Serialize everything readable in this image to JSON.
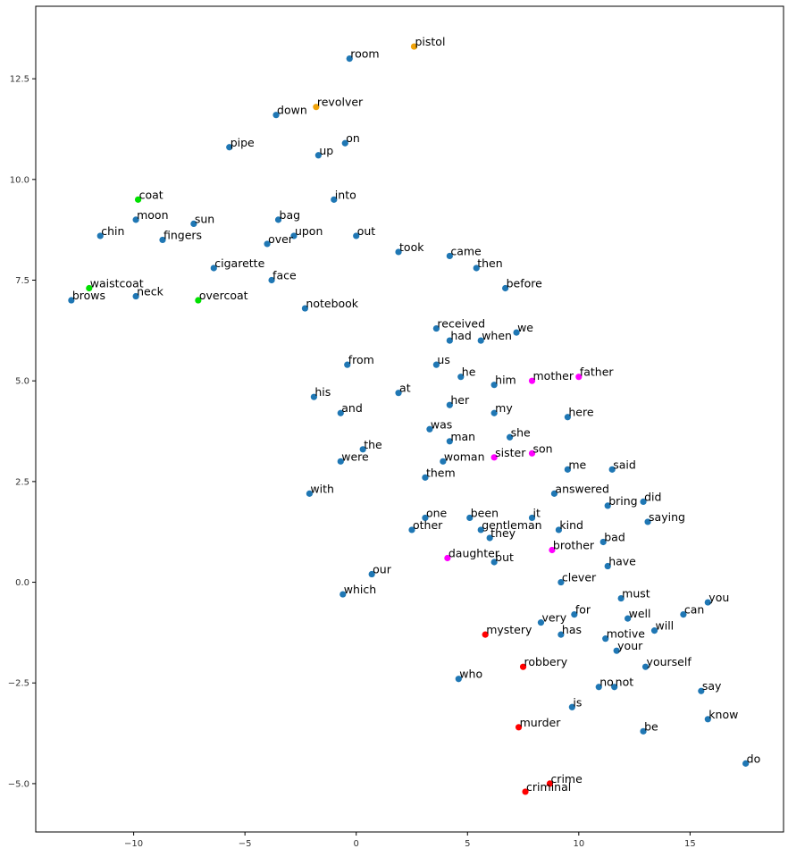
{
  "chart_data": {
    "type": "scatter",
    "title": "",
    "xlabel": "",
    "ylabel": "",
    "xlim": [
      -14.4,
      19.2
    ],
    "ylim": [
      -6.2,
      14.3
    ],
    "x_ticks": [
      -10,
      -5,
      0,
      5,
      10,
      15
    ],
    "y_ticks": [
      -5.0,
      -2.5,
      0.0,
      2.5,
      5.0,
      7.5,
      10.0,
      12.5
    ],
    "x_tick_labels": [
      "−10",
      "−5",
      "0",
      "5",
      "10",
      "15"
    ],
    "y_tick_labels": [
      "−5.0",
      "−2.5",
      "0.0",
      "2.5",
      "5.0",
      "7.5",
      "10.0",
      "12.5"
    ],
    "grid": false,
    "colors": {
      "default": "#1f77b4",
      "weapon": "#f0a30a",
      "clothing": "#00e000",
      "family": "#ff00ff",
      "crime": "#ff0000"
    },
    "points": [
      {
        "word": "pistol",
        "x": 2.6,
        "y": 13.3,
        "group": "weapon"
      },
      {
        "word": "room",
        "x": -0.3,
        "y": 13.0,
        "group": "default"
      },
      {
        "word": "revolver",
        "x": -1.8,
        "y": 11.8,
        "group": "weapon"
      },
      {
        "word": "down",
        "x": -3.6,
        "y": 11.6,
        "group": "default"
      },
      {
        "word": "on",
        "x": -0.5,
        "y": 10.9,
        "group": "default"
      },
      {
        "word": "pipe",
        "x": -5.7,
        "y": 10.8,
        "group": "default"
      },
      {
        "word": "up",
        "x": -1.7,
        "y": 10.6,
        "group": "default"
      },
      {
        "word": "into",
        "x": -1.0,
        "y": 9.5,
        "group": "default"
      },
      {
        "word": "coat",
        "x": -9.8,
        "y": 9.5,
        "group": "clothing"
      },
      {
        "word": "moon",
        "x": -9.9,
        "y": 9.0,
        "group": "default"
      },
      {
        "word": "bag",
        "x": -3.5,
        "y": 9.0,
        "group": "default"
      },
      {
        "word": "sun",
        "x": -7.3,
        "y": 8.9,
        "group": "default"
      },
      {
        "word": "upon",
        "x": -2.8,
        "y": 8.6,
        "group": "default"
      },
      {
        "word": "out",
        "x": 0.0,
        "y": 8.6,
        "group": "default"
      },
      {
        "word": "chin",
        "x": -11.5,
        "y": 8.6,
        "group": "default"
      },
      {
        "word": "fingers",
        "x": -8.7,
        "y": 8.5,
        "group": "default"
      },
      {
        "word": "over",
        "x": -4.0,
        "y": 8.4,
        "group": "default"
      },
      {
        "word": "took",
        "x": 1.9,
        "y": 8.2,
        "group": "default"
      },
      {
        "word": "came",
        "x": 4.2,
        "y": 8.1,
        "group": "default"
      },
      {
        "word": "cigarette",
        "x": -6.4,
        "y": 7.8,
        "group": "default"
      },
      {
        "word": "then",
        "x": 5.4,
        "y": 7.8,
        "group": "default"
      },
      {
        "word": "face",
        "x": -3.8,
        "y": 7.5,
        "group": "default"
      },
      {
        "word": "waistcoat",
        "x": -12.0,
        "y": 7.3,
        "group": "clothing"
      },
      {
        "word": "before",
        "x": 6.7,
        "y": 7.3,
        "group": "default"
      },
      {
        "word": "neck",
        "x": -9.9,
        "y": 7.1,
        "group": "default"
      },
      {
        "word": "overcoat",
        "x": -7.1,
        "y": 7.0,
        "group": "clothing"
      },
      {
        "word": "brows",
        "x": -12.8,
        "y": 7.0,
        "group": "default"
      },
      {
        "word": "notebook",
        "x": -2.3,
        "y": 6.8,
        "group": "default"
      },
      {
        "word": "received",
        "x": 3.6,
        "y": 6.3,
        "group": "default"
      },
      {
        "word": "we",
        "x": 7.2,
        "y": 6.2,
        "group": "default"
      },
      {
        "word": "had",
        "x": 4.2,
        "y": 6.0,
        "group": "default"
      },
      {
        "word": "when",
        "x": 5.6,
        "y": 6.0,
        "group": "default"
      },
      {
        "word": "from",
        "x": -0.4,
        "y": 5.4,
        "group": "default"
      },
      {
        "word": "us",
        "x": 3.6,
        "y": 5.4,
        "group": "default"
      },
      {
        "word": "he",
        "x": 4.7,
        "y": 5.1,
        "group": "default"
      },
      {
        "word": "mother",
        "x": 7.9,
        "y": 5.0,
        "group": "family"
      },
      {
        "word": "father",
        "x": 10.0,
        "y": 5.1,
        "group": "family"
      },
      {
        "word": "him",
        "x": 6.2,
        "y": 4.9,
        "group": "default"
      },
      {
        "word": "at",
        "x": 1.9,
        "y": 4.7,
        "group": "default"
      },
      {
        "word": "his",
        "x": -1.9,
        "y": 4.6,
        "group": "default"
      },
      {
        "word": "her",
        "x": 4.2,
        "y": 4.4,
        "group": "default"
      },
      {
        "word": "and",
        "x": -0.7,
        "y": 4.2,
        "group": "default"
      },
      {
        "word": "my",
        "x": 6.2,
        "y": 4.2,
        "group": "default"
      },
      {
        "word": "here",
        "x": 9.5,
        "y": 4.1,
        "group": "default"
      },
      {
        "word": "was",
        "x": 3.3,
        "y": 3.8,
        "group": "default"
      },
      {
        "word": "she",
        "x": 6.9,
        "y": 3.6,
        "group": "default"
      },
      {
        "word": "man",
        "x": 4.2,
        "y": 3.5,
        "group": "default"
      },
      {
        "word": "the",
        "x": 0.3,
        "y": 3.3,
        "group": "default"
      },
      {
        "word": "son",
        "x": 7.9,
        "y": 3.2,
        "group": "family"
      },
      {
        "word": "sister",
        "x": 6.2,
        "y": 3.1,
        "group": "family"
      },
      {
        "word": "were",
        "x": -0.7,
        "y": 3.0,
        "group": "default"
      },
      {
        "word": "woman",
        "x": 3.9,
        "y": 3.0,
        "group": "default"
      },
      {
        "word": "me",
        "x": 9.5,
        "y": 2.8,
        "group": "default"
      },
      {
        "word": "said",
        "x": 11.5,
        "y": 2.8,
        "group": "default"
      },
      {
        "word": "them",
        "x": 3.1,
        "y": 2.6,
        "group": "default"
      },
      {
        "word": "with",
        "x": -2.1,
        "y": 2.2,
        "group": "default"
      },
      {
        "word": "answered",
        "x": 8.9,
        "y": 2.2,
        "group": "default"
      },
      {
        "word": "did",
        "x": 12.9,
        "y": 2.0,
        "group": "default"
      },
      {
        "word": "bring",
        "x": 11.3,
        "y": 1.9,
        "group": "default"
      },
      {
        "word": "one",
        "x": 3.1,
        "y": 1.6,
        "group": "default"
      },
      {
        "word": "been",
        "x": 5.1,
        "y": 1.6,
        "group": "default"
      },
      {
        "word": "it",
        "x": 7.9,
        "y": 1.6,
        "group": "default"
      },
      {
        "word": "saying",
        "x": 13.1,
        "y": 1.5,
        "group": "default"
      },
      {
        "word": "gentleman",
        "x": 5.6,
        "y": 1.3,
        "group": "default"
      },
      {
        "word": "kind",
        "x": 9.1,
        "y": 1.3,
        "group": "default"
      },
      {
        "word": "other",
        "x": 2.5,
        "y": 1.3,
        "group": "default"
      },
      {
        "word": "they",
        "x": 6.0,
        "y": 1.1,
        "group": "default"
      },
      {
        "word": "bad",
        "x": 11.1,
        "y": 1.0,
        "group": "default"
      },
      {
        "word": "brother",
        "x": 8.8,
        "y": 0.8,
        "group": "family"
      },
      {
        "word": "daughter",
        "x": 4.1,
        "y": 0.6,
        "group": "family"
      },
      {
        "word": "but",
        "x": 6.2,
        "y": 0.5,
        "group": "default"
      },
      {
        "word": "have",
        "x": 11.3,
        "y": 0.4,
        "group": "default"
      },
      {
        "word": "our",
        "x": 0.7,
        "y": 0.2,
        "group": "default"
      },
      {
        "word": "clever",
        "x": 9.2,
        "y": 0.0,
        "group": "default"
      },
      {
        "word": "which",
        "x": -0.6,
        "y": -0.3,
        "group": "default"
      },
      {
        "word": "must",
        "x": 11.9,
        "y": -0.4,
        "group": "default"
      },
      {
        "word": "you",
        "x": 15.8,
        "y": -0.5,
        "group": "default"
      },
      {
        "word": "for",
        "x": 9.8,
        "y": -0.8,
        "group": "default"
      },
      {
        "word": "can",
        "x": 14.7,
        "y": -0.8,
        "group": "default"
      },
      {
        "word": "well",
        "x": 12.2,
        "y": -0.9,
        "group": "default"
      },
      {
        "word": "very",
        "x": 8.3,
        "y": -1.0,
        "group": "default"
      },
      {
        "word": "will",
        "x": 13.4,
        "y": -1.2,
        "group": "default"
      },
      {
        "word": "mystery",
        "x": 5.8,
        "y": -1.3,
        "group": "crime"
      },
      {
        "word": "has",
        "x": 9.2,
        "y": -1.3,
        "group": "default"
      },
      {
        "word": "motive",
        "x": 11.2,
        "y": -1.4,
        "group": "default"
      },
      {
        "word": "your",
        "x": 11.7,
        "y": -1.7,
        "group": "default"
      },
      {
        "word": "robbery",
        "x": 7.5,
        "y": -2.1,
        "group": "crime"
      },
      {
        "word": "yourself",
        "x": 13.0,
        "y": -2.1,
        "group": "default"
      },
      {
        "word": "who",
        "x": 4.6,
        "y": -2.4,
        "group": "default"
      },
      {
        "word": "no",
        "x": 10.9,
        "y": -2.6,
        "group": "default"
      },
      {
        "word": "not",
        "x": 11.6,
        "y": -2.6,
        "group": "default"
      },
      {
        "word": "say",
        "x": 15.5,
        "y": -2.7,
        "group": "default"
      },
      {
        "word": "is",
        "x": 9.7,
        "y": -3.1,
        "group": "default"
      },
      {
        "word": "know",
        "x": 15.8,
        "y": -3.4,
        "group": "default"
      },
      {
        "word": "murder",
        "x": 7.3,
        "y": -3.6,
        "group": "crime"
      },
      {
        "word": "be",
        "x": 12.9,
        "y": -3.7,
        "group": "default"
      },
      {
        "word": "do",
        "x": 17.5,
        "y": -4.5,
        "group": "default"
      },
      {
        "word": "crime",
        "x": 8.7,
        "y": -5.0,
        "group": "crime"
      },
      {
        "word": "criminal",
        "x": 7.6,
        "y": -5.2,
        "group": "crime"
      }
    ]
  }
}
